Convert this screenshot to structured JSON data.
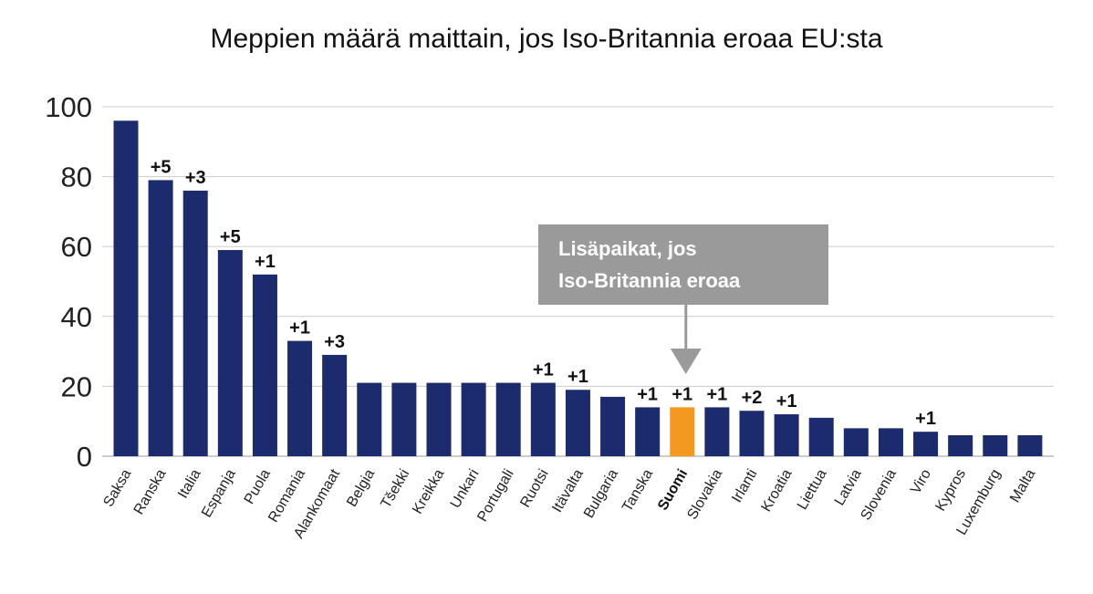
{
  "chart_data": {
    "type": "bar",
    "title": "Meppien määrä maittain, jos Iso-Britannia eroaa EU:sta",
    "xlabel": "",
    "ylabel": "",
    "ylim": [
      0,
      100
    ],
    "yticks": [
      0,
      20,
      40,
      60,
      80,
      100
    ],
    "grid": true,
    "categories": [
      "Saksa",
      "Ranska",
      "Italia",
      "Espanja",
      "Puola",
      "Romania",
      "Alankomaat",
      "Belgia",
      "Tšekki",
      "Kreikka",
      "Unkari",
      "Portugali",
      "Ruotsi",
      "Itävalta",
      "Bulgaria",
      "Tanska",
      "Suomi",
      "Slovakia",
      "Irlanti",
      "Kroatia",
      "Liettua",
      "Latvia",
      "Slovenia",
      "Viro",
      "Kypros",
      "Luxemburg",
      "Malta"
    ],
    "values": [
      96,
      79,
      76,
      59,
      52,
      33,
      29,
      21,
      21,
      21,
      21,
      21,
      21,
      19,
      17,
      14,
      14,
      14,
      13,
      12,
      11,
      8,
      8,
      7,
      6,
      6,
      6
    ],
    "data_labels": [
      "",
      "+5",
      "+3",
      "+5",
      "+1",
      "+1",
      "+3",
      "",
      "",
      "",
      "",
      "",
      "+1",
      "+1",
      "",
      "+1",
      "+1",
      "+1",
      "+2",
      "+1",
      "",
      "",
      "",
      "+1",
      "",
      "",
      ""
    ],
    "highlight_category": "Suomi",
    "colors": {
      "bar": "#1c2b6e",
      "highlight": "#f39a1e",
      "grid": "#cccccc",
      "callout_bg": "#9a9a9a",
      "callout_arrow": "#9a9a9a"
    },
    "annotation": {
      "lines": [
        "Lisäpaikat, jos",
        "Iso-Britannia eroaa"
      ],
      "target": "Suomi"
    }
  }
}
